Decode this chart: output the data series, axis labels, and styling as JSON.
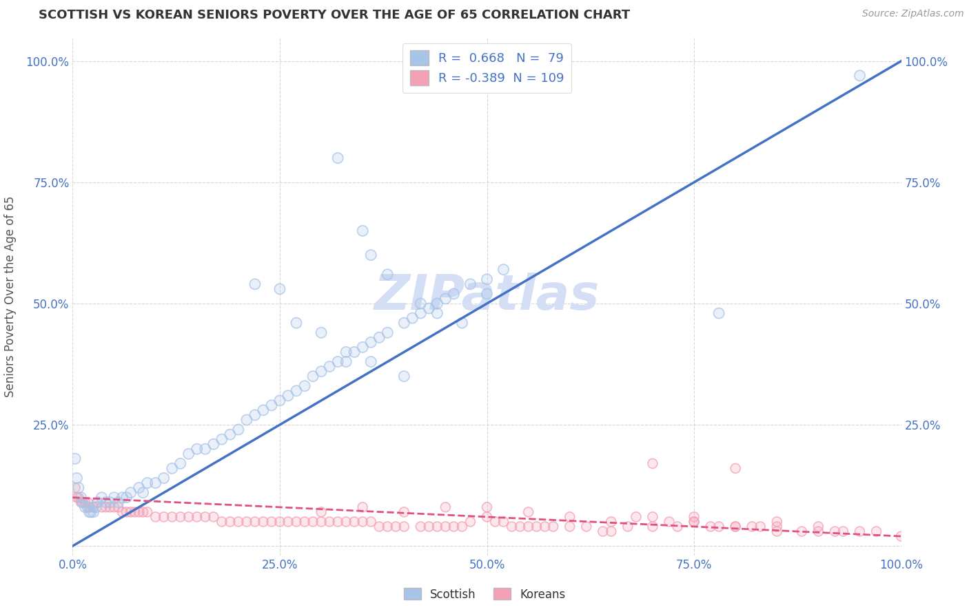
{
  "title": "SCOTTISH VS KOREAN SENIORS POVERTY OVER THE AGE OF 65 CORRELATION CHART",
  "source": "Source: ZipAtlas.com",
  "ylabel": "Seniors Poverty Over the Age of 65",
  "xlim": [
    0,
    1.0
  ],
  "ylim": [
    -0.02,
    1.05
  ],
  "xticks": [
    0.0,
    0.25,
    0.5,
    0.75,
    1.0
  ],
  "xticklabels": [
    "0.0%",
    "25.0%",
    "50.0%",
    "75.0%",
    "100.0%"
  ],
  "yticks": [
    0.0,
    0.25,
    0.5,
    0.75,
    1.0
  ],
  "yticklabels": [
    "",
    "25.0%",
    "50.0%",
    "75.0%",
    "100.0%"
  ],
  "scatter_blue_color": "#a8c4e8",
  "scatter_pink_color": "#f4a0b5",
  "line_blue_color": "#4472c4",
  "line_pink_color": "#e05080",
  "watermark": "ZIPatlas",
  "R_blue": 0.668,
  "N_blue": 79,
  "R_pink": -0.389,
  "N_pink": 109,
  "blue_line_x": [
    0.0,
    1.0
  ],
  "blue_line_y": [
    0.0,
    1.0
  ],
  "pink_line_x": [
    0.0,
    1.0
  ],
  "pink_line_y": [
    0.1,
    0.02
  ],
  "background_color": "#ffffff",
  "grid_color": "#cccccc",
  "title_color": "#333333",
  "axis_label_color": "#555555",
  "tick_color": "#4472c4",
  "watermark_color": "#d4dff5",
  "scatter_size_blue": 120,
  "scatter_size_pink": 100,
  "blue_scatter_x": [
    0.003,
    0.005,
    0.007,
    0.01,
    0.012,
    0.015,
    0.018,
    0.02,
    0.022,
    0.025,
    0.028,
    0.03,
    0.035,
    0.04,
    0.045,
    0.05,
    0.055,
    0.06,
    0.065,
    0.07,
    0.08,
    0.085,
    0.09,
    0.1,
    0.11,
    0.12,
    0.13,
    0.14,
    0.15,
    0.16,
    0.17,
    0.18,
    0.19,
    0.2,
    0.21,
    0.22,
    0.23,
    0.24,
    0.25,
    0.26,
    0.27,
    0.28,
    0.29,
    0.3,
    0.31,
    0.32,
    0.33,
    0.34,
    0.35,
    0.36,
    0.37,
    0.38,
    0.4,
    0.41,
    0.42,
    0.43,
    0.44,
    0.45,
    0.46,
    0.48,
    0.5,
    0.52,
    0.78,
    0.95,
    0.32,
    0.35,
    0.36,
    0.38,
    0.42,
    0.44,
    0.47,
    0.5,
    0.22,
    0.25,
    0.27,
    0.3,
    0.33,
    0.36,
    0.4
  ],
  "blue_scatter_y": [
    0.18,
    0.14,
    0.12,
    0.1,
    0.09,
    0.08,
    0.08,
    0.07,
    0.07,
    0.07,
    0.08,
    0.09,
    0.1,
    0.09,
    0.09,
    0.1,
    0.09,
    0.1,
    0.1,
    0.11,
    0.12,
    0.11,
    0.13,
    0.13,
    0.14,
    0.16,
    0.17,
    0.19,
    0.2,
    0.2,
    0.21,
    0.22,
    0.23,
    0.24,
    0.26,
    0.27,
    0.28,
    0.29,
    0.3,
    0.31,
    0.32,
    0.33,
    0.35,
    0.36,
    0.37,
    0.38,
    0.38,
    0.4,
    0.41,
    0.42,
    0.43,
    0.44,
    0.46,
    0.47,
    0.48,
    0.49,
    0.5,
    0.51,
    0.52,
    0.54,
    0.55,
    0.57,
    0.48,
    0.97,
    0.8,
    0.65,
    0.6,
    0.56,
    0.5,
    0.48,
    0.46,
    0.52,
    0.54,
    0.53,
    0.46,
    0.44,
    0.4,
    0.38,
    0.35
  ],
  "pink_scatter_x": [
    0.003,
    0.005,
    0.007,
    0.01,
    0.012,
    0.015,
    0.018,
    0.02,
    0.025,
    0.03,
    0.035,
    0.04,
    0.045,
    0.05,
    0.055,
    0.06,
    0.065,
    0.07,
    0.075,
    0.08,
    0.085,
    0.09,
    0.1,
    0.11,
    0.12,
    0.13,
    0.14,
    0.15,
    0.16,
    0.17,
    0.18,
    0.19,
    0.2,
    0.21,
    0.22,
    0.23,
    0.24,
    0.25,
    0.26,
    0.27,
    0.28,
    0.29,
    0.3,
    0.31,
    0.32,
    0.33,
    0.34,
    0.35,
    0.36,
    0.37,
    0.38,
    0.39,
    0.4,
    0.42,
    0.43,
    0.44,
    0.45,
    0.46,
    0.47,
    0.48,
    0.5,
    0.51,
    0.52,
    0.53,
    0.54,
    0.55,
    0.56,
    0.57,
    0.58,
    0.6,
    0.62,
    0.64,
    0.65,
    0.67,
    0.68,
    0.7,
    0.72,
    0.73,
    0.75,
    0.77,
    0.78,
    0.8,
    0.82,
    0.83,
    0.85,
    0.88,
    0.9,
    0.92,
    0.93,
    0.95,
    0.97,
    1.0,
    0.3,
    0.35,
    0.4,
    0.45,
    0.5,
    0.55,
    0.6,
    0.65,
    0.7,
    0.75,
    0.8,
    0.85,
    0.9,
    0.7,
    0.75,
    0.8,
    0.85
  ],
  "pink_scatter_y": [
    0.12,
    0.1,
    0.1,
    0.09,
    0.09,
    0.09,
    0.09,
    0.08,
    0.08,
    0.09,
    0.08,
    0.08,
    0.08,
    0.08,
    0.08,
    0.07,
    0.07,
    0.07,
    0.07,
    0.07,
    0.07,
    0.07,
    0.06,
    0.06,
    0.06,
    0.06,
    0.06,
    0.06,
    0.06,
    0.06,
    0.05,
    0.05,
    0.05,
    0.05,
    0.05,
    0.05,
    0.05,
    0.05,
    0.05,
    0.05,
    0.05,
    0.05,
    0.05,
    0.05,
    0.05,
    0.05,
    0.05,
    0.05,
    0.05,
    0.04,
    0.04,
    0.04,
    0.04,
    0.04,
    0.04,
    0.04,
    0.04,
    0.04,
    0.04,
    0.05,
    0.06,
    0.05,
    0.05,
    0.04,
    0.04,
    0.04,
    0.04,
    0.04,
    0.04,
    0.04,
    0.04,
    0.03,
    0.03,
    0.04,
    0.06,
    0.06,
    0.05,
    0.04,
    0.05,
    0.04,
    0.04,
    0.04,
    0.04,
    0.04,
    0.04,
    0.03,
    0.03,
    0.03,
    0.03,
    0.03,
    0.03,
    0.02,
    0.07,
    0.08,
    0.07,
    0.08,
    0.08,
    0.07,
    0.06,
    0.05,
    0.04,
    0.06,
    0.16,
    0.05,
    0.04,
    0.17,
    0.05,
    0.04,
    0.03
  ]
}
